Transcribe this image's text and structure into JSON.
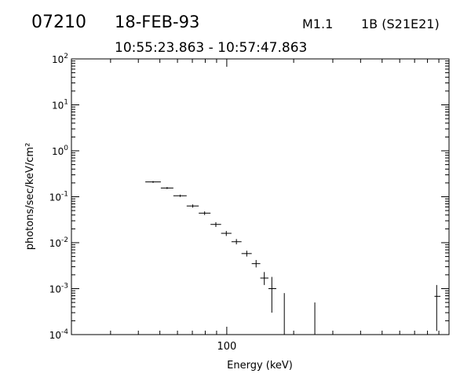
{
  "header": {
    "event_id": "07210",
    "date": "18-FEB-93",
    "goes_class": "M1.1",
    "h_alpha": "1B (S21E21)",
    "time_range": "10:55:23.863 - 10:57:47.863"
  },
  "chart_data": {
    "type": "scatter",
    "title": "",
    "xlabel": "Energy (keV)",
    "ylabel": "photons/sec/keV/cm²",
    "xscale": "log",
    "yscale": "log",
    "xlim": [
      20,
      1000
    ],
    "ylim": [
      0.0001,
      100
    ],
    "grid": false,
    "x_tick_labels": [
      {
        "value": 100,
        "label": "100"
      }
    ],
    "y_tick_labels": [
      {
        "value": 0.0001,
        "base": "10",
        "exp": "-4"
      },
      {
        "value": 0.001,
        "base": "10",
        "exp": "-3"
      },
      {
        "value": 0.01,
        "base": "10",
        "exp": "-2"
      },
      {
        "value": 0.1,
        "base": "10",
        "exp": "-1"
      },
      {
        "value": 1,
        "base": "10",
        "exp": "0"
      },
      {
        "value": 10,
        "base": "10",
        "exp": "1"
      },
      {
        "value": 100,
        "base": "10",
        "exp": "2"
      }
    ],
    "points": [
      {
        "x": 46.6,
        "x_lo": 43.0,
        "x_hi": 50.5,
        "y": 0.21,
        "y_lo": 0.2,
        "y_hi": 0.22
      },
      {
        "x": 53.9,
        "x_lo": 50.5,
        "x_hi": 57.5,
        "y": 0.155,
        "y_lo": 0.147,
        "y_hi": 0.163
      },
      {
        "x": 61.7,
        "x_lo": 57.5,
        "x_hi": 66.0,
        "y": 0.105,
        "y_lo": 0.099,
        "y_hi": 0.111
      },
      {
        "x": 70.3,
        "x_lo": 66.0,
        "x_hi": 74.8,
        "y": 0.063,
        "y_lo": 0.058,
        "y_hi": 0.068
      },
      {
        "x": 79.5,
        "x_lo": 74.8,
        "x_hi": 84.5,
        "y": 0.044,
        "y_lo": 0.04,
        "y_hi": 0.048
      },
      {
        "x": 89.3,
        "x_lo": 84.5,
        "x_hi": 94.3,
        "y": 0.025,
        "y_lo": 0.022,
        "y_hi": 0.028
      },
      {
        "x": 99.5,
        "x_lo": 94.3,
        "x_hi": 105.0,
        "y": 0.016,
        "y_lo": 0.014,
        "y_hi": 0.018
      },
      {
        "x": 110.5,
        "x_lo": 105.0,
        "x_hi": 116.5,
        "y": 0.0105,
        "y_lo": 0.0092,
        "y_hi": 0.012
      },
      {
        "x": 123.0,
        "x_lo": 116.5,
        "x_hi": 129.5,
        "y": 0.0058,
        "y_lo": 0.005,
        "y_hi": 0.0067
      },
      {
        "x": 135.5,
        "x_lo": 129.5,
        "x_hi": 141.5,
        "y": 0.0035,
        "y_lo": 0.0029,
        "y_hi": 0.0042
      },
      {
        "x": 147.5,
        "x_lo": 141.5,
        "x_hi": 154.0,
        "y": 0.0017,
        "y_lo": 0.0012,
        "y_hi": 0.0023
      },
      {
        "x": 159.5,
        "x_lo": 154.0,
        "x_hi": 167.0,
        "y": 0.001,
        "y_lo": 0.0003,
        "y_hi": 0.0018
      },
      {
        "x": 181.5,
        "x_lo": 181.5,
        "x_hi": 181.5,
        "y": 0.0008,
        "y_lo": 0.0001,
        "y_hi": 0.0008
      },
      {
        "x": 249.0,
        "x_lo": 249.0,
        "x_hi": 249.0,
        "y": 0.0005,
        "y_lo": 0.0001,
        "y_hi": 0.0005
      },
      {
        "x": 880.0,
        "x_lo": 860.0,
        "x_hi": 915.0,
        "y": 0.00068,
        "y_lo": 0.00012,
        "y_hi": 0.0012
      }
    ]
  }
}
